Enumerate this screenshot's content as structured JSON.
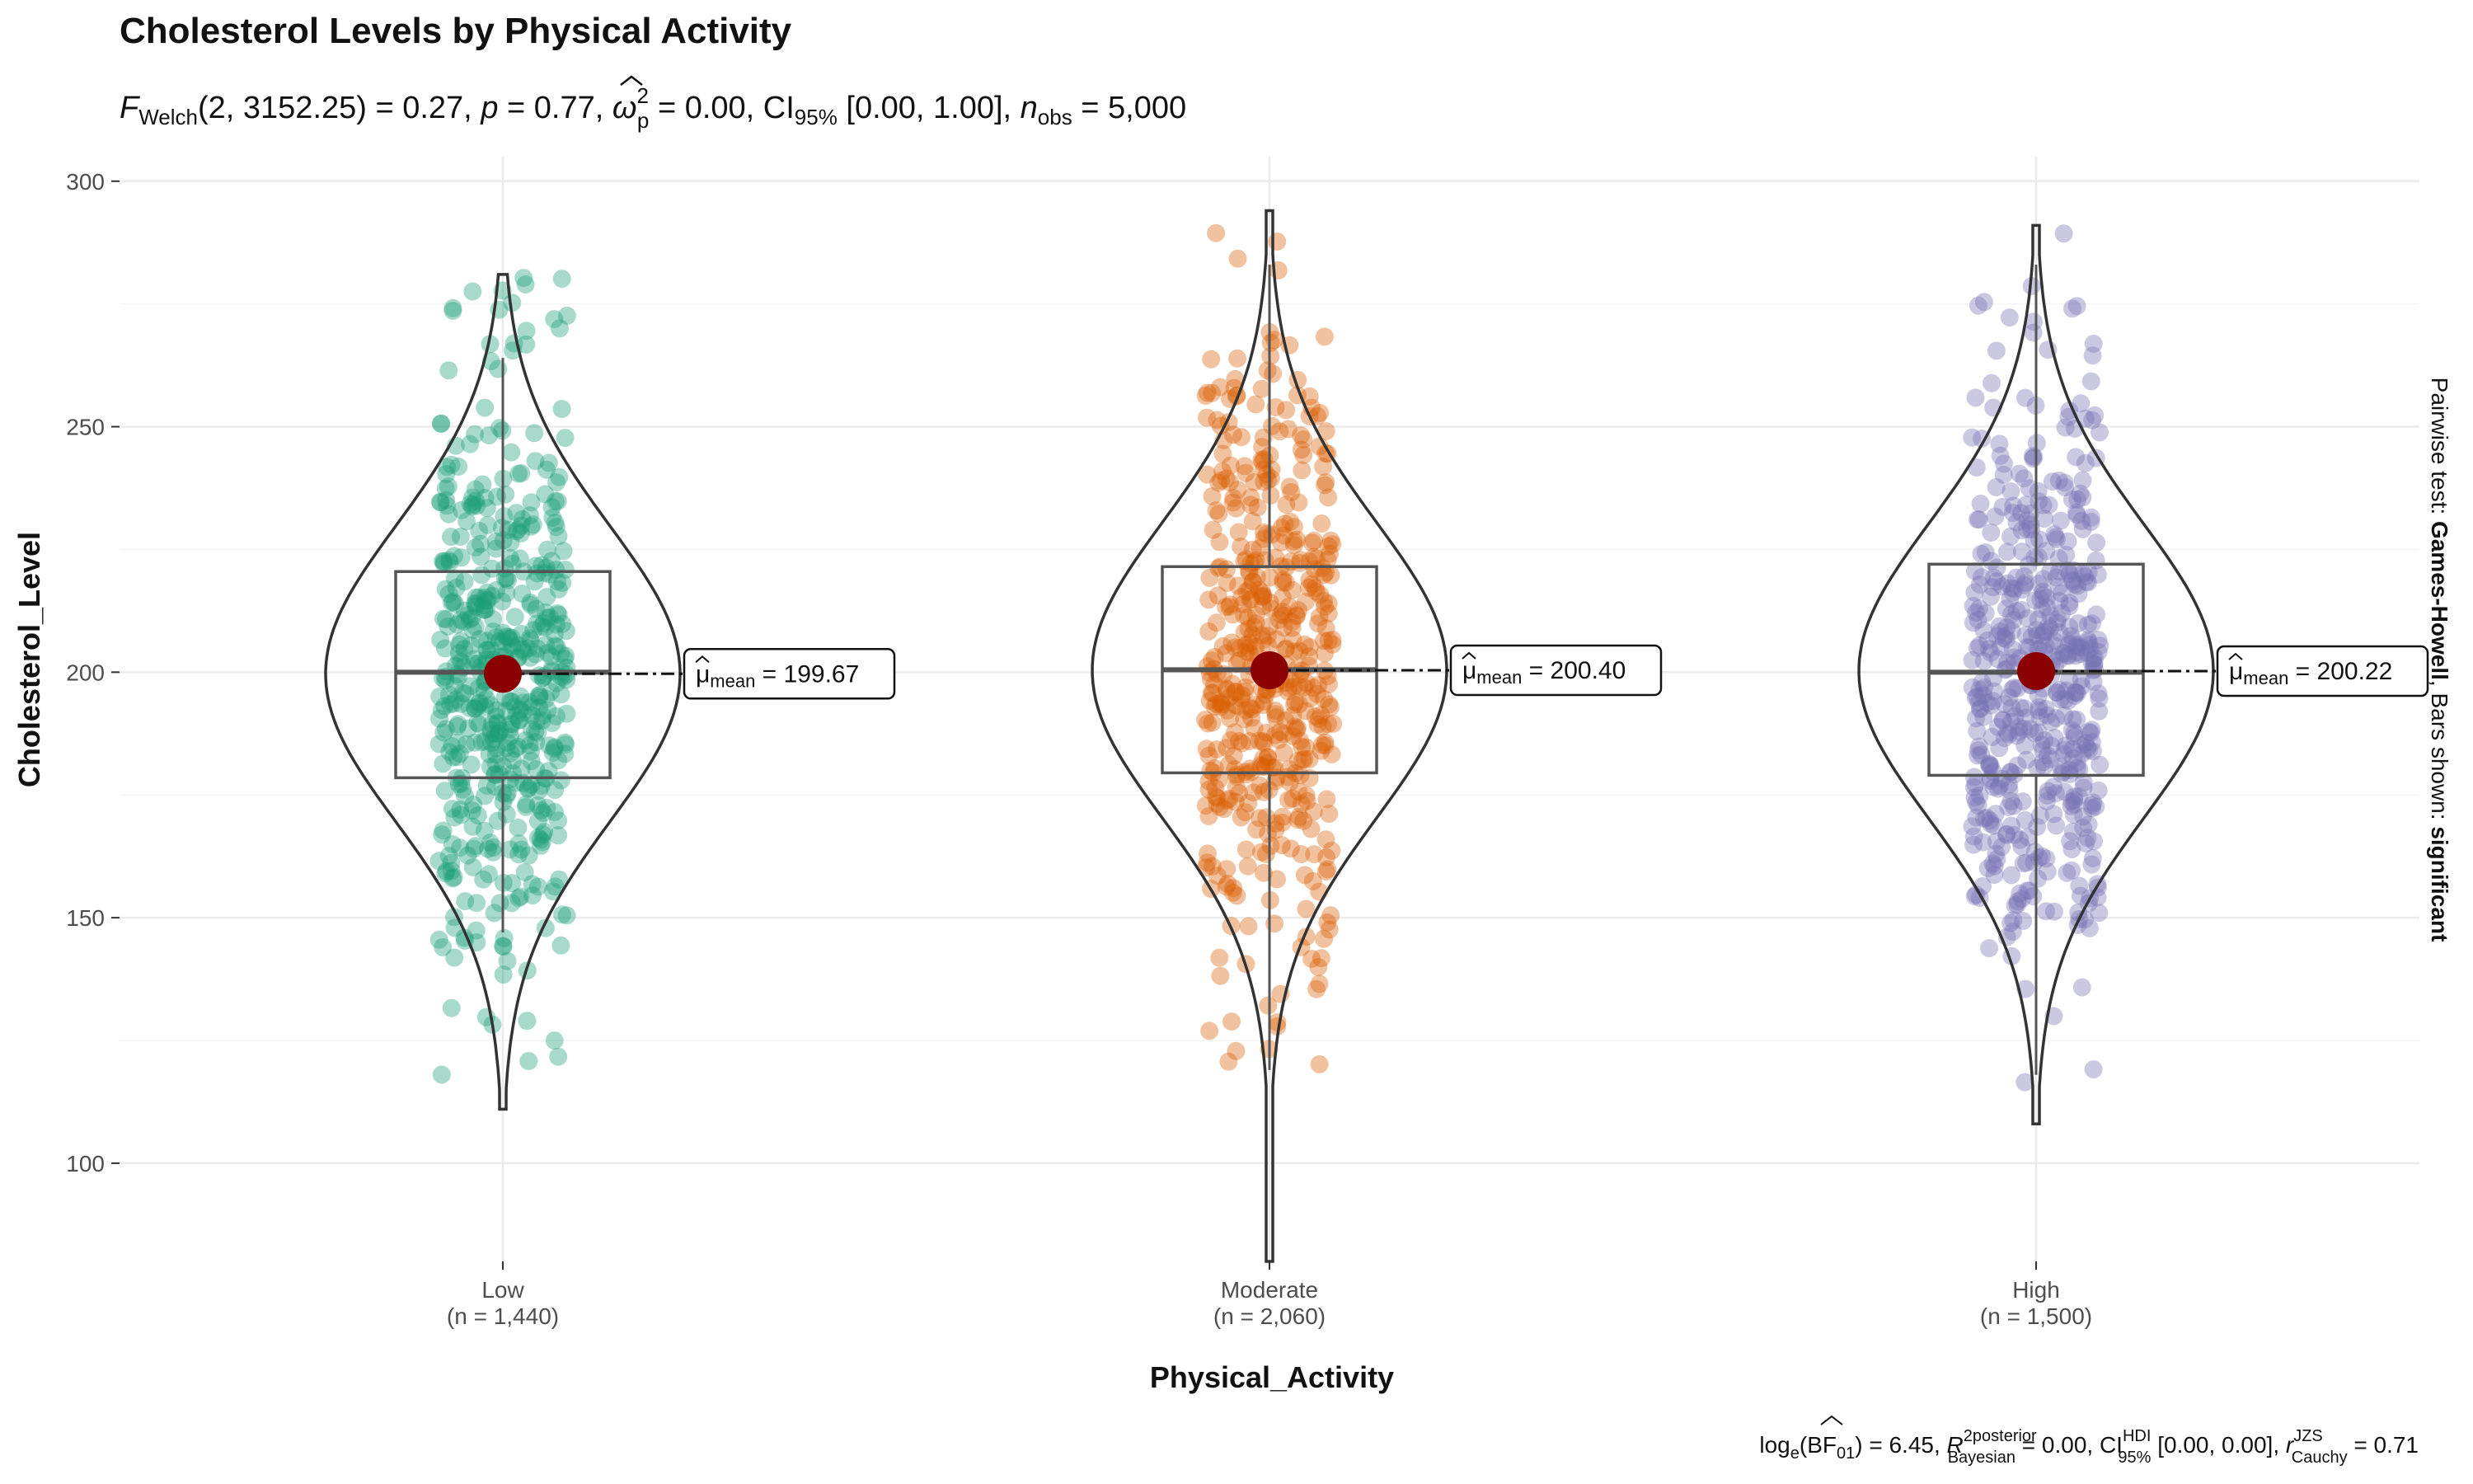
{
  "chart_data": {
    "type": "violin",
    "title": "Cholesterol Levels by Physical Activity",
    "subtitle": {
      "stat": "F",
      "stat_sub": "Welch",
      "df": "(2, 3152.25) = 0.27,",
      "p_sym": "p",
      "p_val": " = 0.77,",
      "effect_sym": "ω",
      "effect_sup": "2",
      "effect_sub": "p",
      "effect_val": " = 0.00, CI",
      "ci_sub": "95%",
      "ci_val": " [0.00, 1.00],",
      "n_sym": "n",
      "n_sub": "obs",
      "n_val": " = 5,000"
    },
    "xlabel": "Physical_Activity",
    "ylabel": "Cholesterol_Level",
    "ylim": [
      80,
      305
    ],
    "yticks": [
      "100",
      "150",
      "200",
      "250",
      "300"
    ],
    "grid": true,
    "categories": [
      {
        "name": "Low",
        "n_label": "(n = 1,440)",
        "color": "#1b9e77",
        "mean": 199.67,
        "mean_label": "= 199.67",
        "median": 200,
        "q1": 178.5,
        "q3": 220.5,
        "whisker_low": 147,
        "whisker_high": 264,
        "min": 111,
        "max": 281
      },
      {
        "name": "Moderate",
        "n_label": "(n = 2,060)",
        "color": "#d95f02",
        "mean": 200.4,
        "mean_label": "= 200.40",
        "median": 200.5,
        "q1": 179.5,
        "q3": 221.5,
        "whisker_low": 119,
        "whisker_high": 283,
        "min": 80,
        "max": 294
      },
      {
        "name": "High",
        "n_label": "(n = 1,500)",
        "color": "#7570b3",
        "mean": 200.22,
        "mean_label": "= 200.22",
        "median": 200,
        "q1": 179,
        "q3": 222,
        "whisker_low": 118,
        "whisker_high": 283,
        "min": 108,
        "max": 291
      }
    ],
    "mean_symbol": "μ",
    "mean_sub": "mean",
    "side_label": {
      "prefix": "Pairwise test: ",
      "test": "Games-Howell",
      "mid": ", Bars shown: ",
      "shown": "significant"
    },
    "caption": {
      "a": "log",
      "a_sub": "e",
      "b": "(BF",
      "b_sub": "01",
      "c": ") = 6.45, ",
      "r2": "R",
      "r2_sup": "2",
      "r2_sup2": "posterior",
      "r2_sub": "Bayesian",
      "d": " = 0.00, CI",
      "ci_sup": "HDI",
      "ci_sub": "95%",
      "e": " [0.00, 0.00], ",
      "r": "r",
      "r_sup": "JZS",
      "r_sub": "Cauchy",
      "f": " = 0.71"
    },
    "colors": {
      "mean_point": "#8b0000",
      "outline": "#333333",
      "box": "#555555",
      "grid": "#ebebeb"
    }
  }
}
